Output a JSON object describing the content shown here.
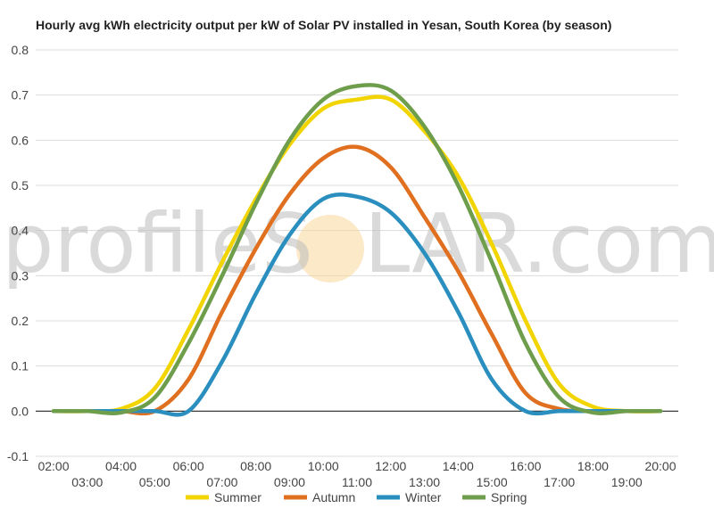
{
  "watermark": {
    "left_text": "profileS",
    "right_text": "LAR.com"
  },
  "chart_data": {
    "type": "line",
    "title": "Hourly avg kWh electricity output per kW of Solar PV installed in Yesan, South Korea (by season)",
    "xlabel": "",
    "ylabel": "",
    "ylim": [
      -0.1,
      0.8
    ],
    "yticks": [
      "0.8",
      "0.7",
      "0.6",
      "0.5",
      "0.4",
      "0.3",
      "0.2",
      "0.1",
      "0.0",
      "-0.1"
    ],
    "grid": true,
    "legend_position": "bottom",
    "x_upper": [
      "02:00",
      "04:00",
      "06:00",
      "08:00",
      "10:00",
      "12:00",
      "14:00",
      "16:00",
      "18:00",
      "20:00"
    ],
    "x_lower": [
      "03:00",
      "05:00",
      "07:00",
      "09:00",
      "11:00",
      "13:00",
      "15:00",
      "17:00",
      "19:00"
    ],
    "x": [
      2,
      3,
      4,
      5,
      6,
      7,
      8,
      9,
      10,
      11,
      12,
      13,
      14,
      15,
      16,
      17,
      18,
      19,
      20
    ],
    "series": [
      {
        "name": "Summer",
        "color": "#f2d400",
        "values": [
          0,
          0,
          0.005,
          0.05,
          0.18,
          0.33,
          0.47,
          0.59,
          0.67,
          0.69,
          0.69,
          0.62,
          0.52,
          0.37,
          0.2,
          0.06,
          0.01,
          0,
          0
        ]
      },
      {
        "name": "Autumn",
        "color": "#e07020",
        "values": [
          0,
          0,
          0,
          0,
          0.07,
          0.22,
          0.36,
          0.48,
          0.56,
          0.585,
          0.54,
          0.43,
          0.31,
          0.17,
          0.04,
          0.005,
          0,
          0,
          0
        ]
      },
      {
        "name": "Winter",
        "color": "#2a8fbf",
        "values": [
          0,
          0,
          0,
          0,
          0,
          0.11,
          0.26,
          0.39,
          0.47,
          0.475,
          0.44,
          0.35,
          0.22,
          0.07,
          0,
          0,
          0,
          0,
          0
        ]
      },
      {
        "name": "Spring",
        "color": "#6e9e4c",
        "values": [
          0,
          0,
          -0.003,
          0.03,
          0.15,
          0.3,
          0.46,
          0.6,
          0.69,
          0.72,
          0.71,
          0.63,
          0.5,
          0.33,
          0.15,
          0.03,
          -0.003,
          0,
          0
        ]
      }
    ]
  }
}
